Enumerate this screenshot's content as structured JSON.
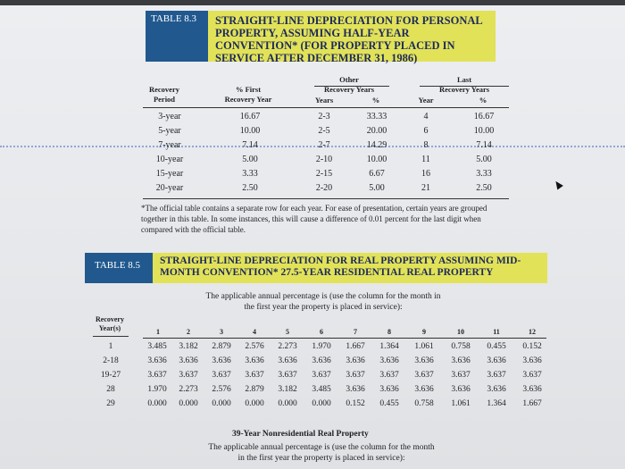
{
  "table83": {
    "label": "TABLE 8.3",
    "title": "STRAIGHT-LINE DEPRECIATION FOR PERSONAL PROPERTY, ASSUMING HALF-YEAR CONVENTION* (FOR PROPERTY PLACED IN SERVICE AFTER DECEMBER 31, 1986)",
    "headers": {
      "recovery": "Recovery",
      "period": "Period",
      "pct_first": "% First",
      "recovery_year": "Recovery Year",
      "other_group": "Other",
      "other_group2": "Recovery Years",
      "other_years": "Years",
      "other_pct": "%",
      "last_group": "Last",
      "last_group2": "Recovery Years",
      "last_year": "Year",
      "last_pct": "%"
    },
    "rows": [
      {
        "period": "3-year",
        "first": "16.67",
        "oyears": "2-3",
        "opct": "33.33",
        "lyear": "4",
        "lpct": "16.67"
      },
      {
        "period": "5-year",
        "first": "10.00",
        "oyears": "2-5",
        "opct": "20.00",
        "lyear": "6",
        "lpct": "10.00"
      },
      {
        "period": "7-year",
        "first": "7.14",
        "oyears": "2-7",
        "opct": "14.29",
        "lyear": "8",
        "lpct": "7.14"
      },
      {
        "period": "10-year",
        "first": "5.00",
        "oyears": "2-10",
        "opct": "10.00",
        "lyear": "11",
        "lpct": "5.00"
      },
      {
        "period": "15-year",
        "first": "3.33",
        "oyears": "2-15",
        "opct": "6.67",
        "lyear": "16",
        "lpct": "3.33"
      },
      {
        "period": "20-year",
        "first": "2.50",
        "oyears": "2-20",
        "opct": "5.00",
        "lyear": "21",
        "lpct": "2.50"
      }
    ],
    "footnote": "*The official table contains a separate row for each year. For ease of presentation, certain years are grouped together in this table. In some instances, this will cause a difference of 0.01 percent for the last digit when compared with the official table."
  },
  "table85": {
    "label": "TABLE 8.5",
    "title": "STRAIGHT-LINE DEPRECIATION FOR REAL PROPERTY ASSUMING MID-MONTH CONVENTION* 27.5-YEAR RESIDENTIAL REAL PROPERTY",
    "intro": "The applicable annual percentage is (use the column for the month in the first year the property is placed in service):",
    "recovery_label": "Recovery",
    "years_label": "Year(s)",
    "months": [
      "1",
      "2",
      "3",
      "4",
      "5",
      "6",
      "7",
      "8",
      "9",
      "10",
      "11",
      "12"
    ],
    "rows": [
      {
        "label": "1",
        "values": [
          "3.485",
          "3.182",
          "2.879",
          "2.576",
          "2.273",
          "1.970",
          "1.667",
          "1.364",
          "1.061",
          "0.758",
          "0.455",
          "0.152"
        ]
      },
      {
        "label": "2-18",
        "values": [
          "3.636",
          "3.636",
          "3.636",
          "3.636",
          "3.636",
          "3.636",
          "3.636",
          "3.636",
          "3.636",
          "3.636",
          "3.636",
          "3.636"
        ]
      },
      {
        "label": "19-27",
        "values": [
          "3.637",
          "3.637",
          "3.637",
          "3.637",
          "3.637",
          "3.637",
          "3.637",
          "3.637",
          "3.637",
          "3.637",
          "3.637",
          "3.637"
        ]
      },
      {
        "label": "28",
        "values": [
          "1.970",
          "2.273",
          "2.576",
          "2.879",
          "3.182",
          "3.485",
          "3.636",
          "3.636",
          "3.636",
          "3.636",
          "3.636",
          "3.636"
        ]
      },
      {
        "label": "29",
        "values": [
          "0.000",
          "0.000",
          "0.000",
          "0.000",
          "0.000",
          "0.000",
          "0.152",
          "0.455",
          "0.758",
          "1.061",
          "1.364",
          "1.667"
        ]
      }
    ]
  },
  "nonres": {
    "title": "39-Year Nonresidential Real Property",
    "intro": "The applicable annual percentage is (use the column for the month in the first year the property is placed in service):"
  }
}
